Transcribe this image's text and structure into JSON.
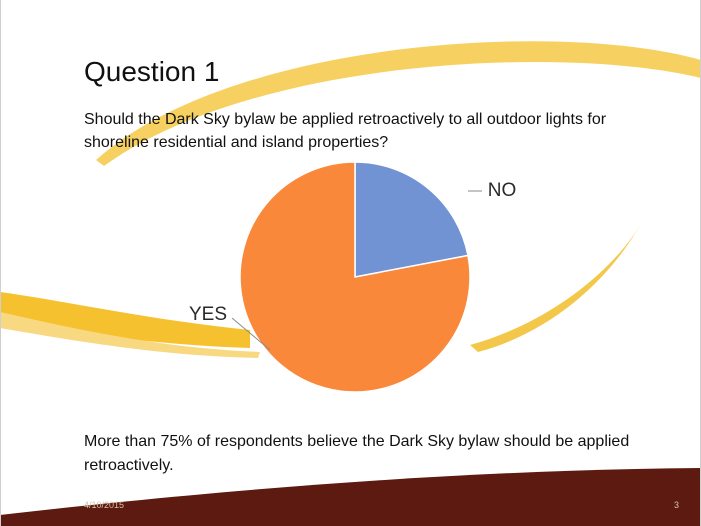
{
  "slide": {
    "title": "Question 1",
    "question": "Should the Dark Sky bylaw be applied retroactively to all outdoor lights for shoreline residential and island properties?",
    "summary": "More than 75% of respondents believe the Dark Sky bylaw should be applied retroactively.",
    "footer_date": "4/10/2015",
    "page_number": "3"
  },
  "colors": {
    "no": "#7193d3",
    "yes": "#f9883a",
    "swoosh": "#f4c33a",
    "footer": "#5c1a10"
  },
  "chart_data": {
    "type": "pie",
    "title": "",
    "categories": [
      "NO",
      "YES"
    ],
    "values": [
      22,
      78
    ]
  }
}
